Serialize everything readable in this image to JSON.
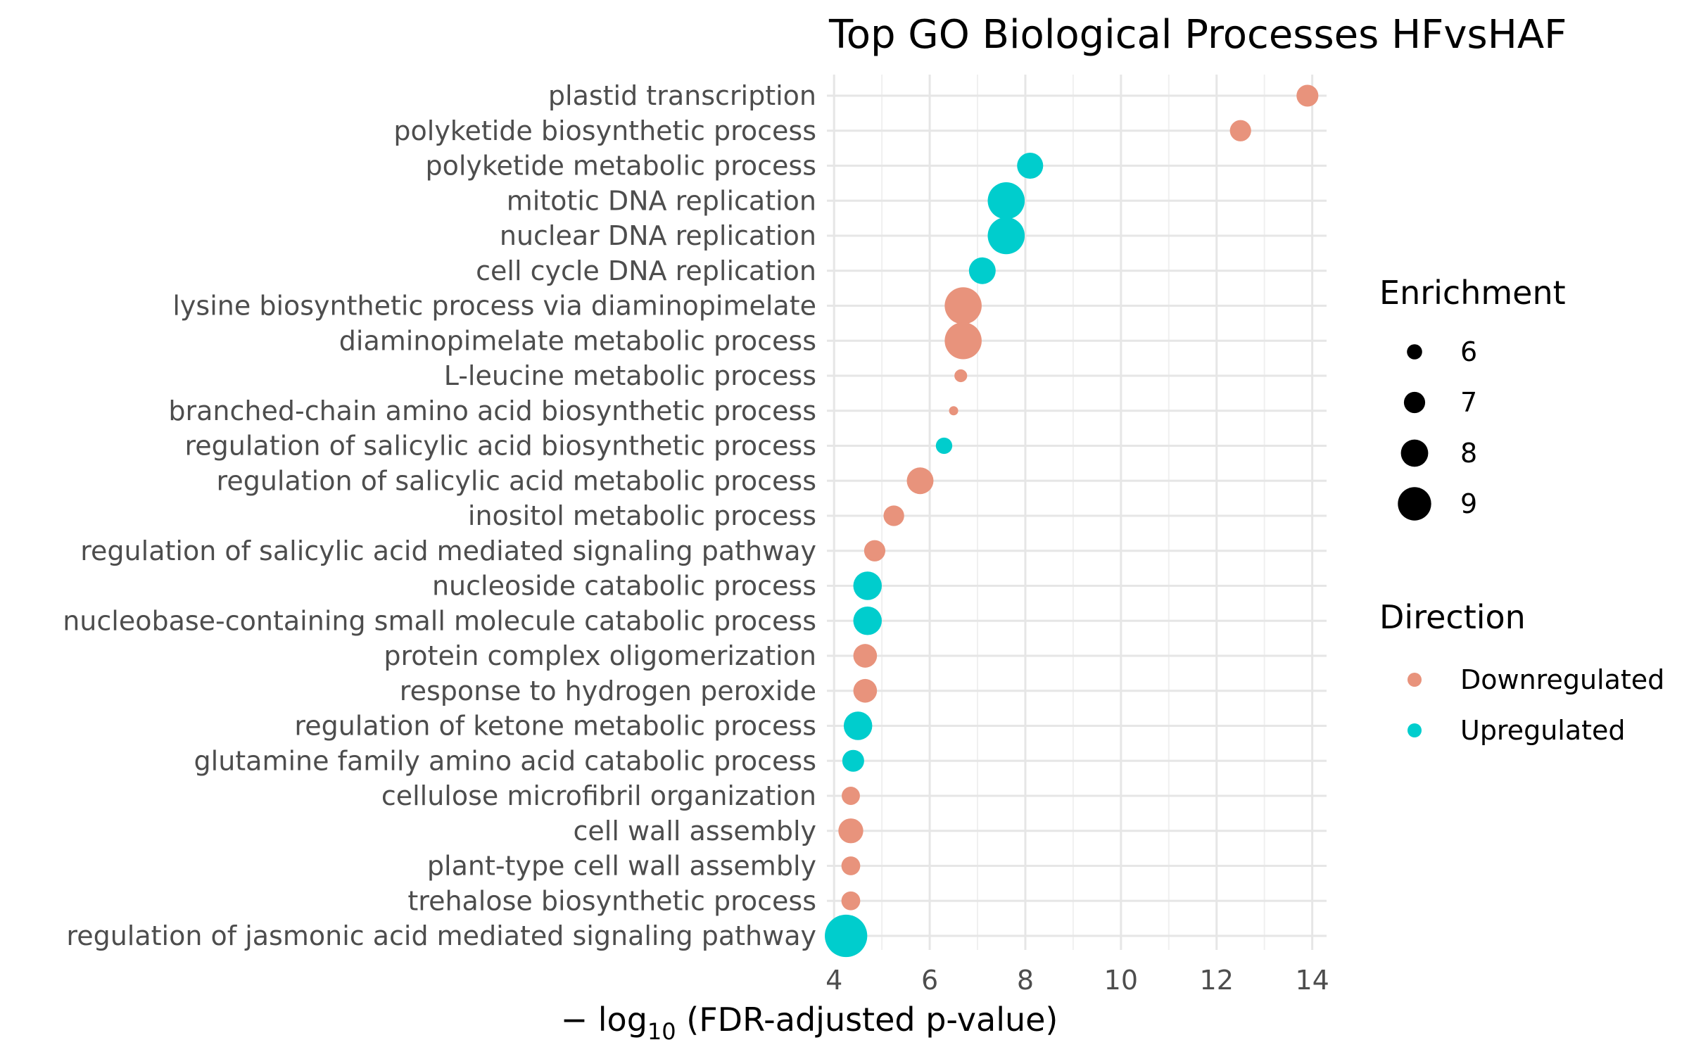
{
  "chart_data": {
    "type": "scatter",
    "title": "Top GO Biological Processes HFvsHAF",
    "xlabel": {
      "prefix": "− log",
      "subscript": "10",
      "suffix": " (FDR-adjusted p-value)"
    },
    "ylabel": "",
    "xlim": [
      3.85,
      14.3
    ],
    "xticks": [
      4,
      6,
      8,
      10,
      12,
      14
    ],
    "grid": true,
    "colors": {
      "Downregulated": "#E8937C",
      "Upregulated": "#00CDCD"
    },
    "categories": [
      "plastid transcription",
      "polyketide biosynthetic process",
      "polyketide metabolic process",
      "mitotic DNA replication",
      "nuclear DNA replication",
      "cell cycle DNA replication",
      "lysine biosynthetic process via diaminopimelate",
      "diaminopimelate metabolic process",
      "L-leucine metabolic process",
      "branched-chain amino acid biosynthetic process",
      "regulation of salicylic acid biosynthetic process",
      "regulation of salicylic acid metabolic process",
      "inositol metabolic process",
      "regulation of salicylic acid mediated signaling pathway",
      "nucleoside catabolic process",
      "nucleobase-containing small molecule catabolic process",
      "protein complex oligomerization",
      "response to hydrogen peroxide",
      "regulation of ketone metabolic process",
      "glutamine family amino acid catabolic process",
      "cellulose microfibril organization",
      "cell wall assembly",
      "plant-type cell wall assembly",
      "trehalose biosynthetic process",
      "regulation of jasmonic acid mediated signaling pathway"
    ],
    "points": [
      {
        "x": 13.9,
        "enrichment": 7.1,
        "direction": "Downregulated"
      },
      {
        "x": 12.5,
        "enrichment": 7.0,
        "direction": "Downregulated"
      },
      {
        "x": 8.1,
        "enrichment": 7.8,
        "direction": "Upregulated"
      },
      {
        "x": 7.6,
        "enrichment": 9.6,
        "direction": "Upregulated"
      },
      {
        "x": 7.6,
        "enrichment": 9.6,
        "direction": "Upregulated"
      },
      {
        "x": 7.1,
        "enrichment": 7.9,
        "direction": "Upregulated"
      },
      {
        "x": 6.7,
        "enrichment": 9.6,
        "direction": "Downregulated"
      },
      {
        "x": 6.7,
        "enrichment": 9.6,
        "direction": "Downregulated"
      },
      {
        "x": 6.65,
        "enrichment": 5.6,
        "direction": "Downregulated"
      },
      {
        "x": 6.5,
        "enrichment": 5.0,
        "direction": "Downregulated"
      },
      {
        "x": 6.3,
        "enrichment": 6.2,
        "direction": "Upregulated"
      },
      {
        "x": 5.8,
        "enrichment": 7.9,
        "direction": "Downregulated"
      },
      {
        "x": 5.25,
        "enrichment": 6.9,
        "direction": "Downregulated"
      },
      {
        "x": 4.85,
        "enrichment": 7.0,
        "direction": "Downregulated"
      },
      {
        "x": 4.7,
        "enrichment": 8.2,
        "direction": "Upregulated"
      },
      {
        "x": 4.7,
        "enrichment": 8.2,
        "direction": "Upregulated"
      },
      {
        "x": 4.65,
        "enrichment": 7.4,
        "direction": "Downregulated"
      },
      {
        "x": 4.65,
        "enrichment": 7.4,
        "direction": "Downregulated"
      },
      {
        "x": 4.5,
        "enrichment": 8.2,
        "direction": "Upregulated"
      },
      {
        "x": 4.4,
        "enrichment": 7.1,
        "direction": "Upregulated"
      },
      {
        "x": 4.35,
        "enrichment": 6.5,
        "direction": "Downregulated"
      },
      {
        "x": 4.35,
        "enrichment": 7.6,
        "direction": "Downregulated"
      },
      {
        "x": 4.35,
        "enrichment": 6.6,
        "direction": "Downregulated"
      },
      {
        "x": 4.35,
        "enrichment": 6.6,
        "direction": "Downregulated"
      },
      {
        "x": 4.25,
        "enrichment": 10.5,
        "direction": "Upregulated"
      }
    ],
    "legend": {
      "placement": "right",
      "size_title": "Enrichment",
      "size_values": [
        6,
        7,
        8,
        9
      ],
      "color_title": "Direction",
      "color_entries": [
        "Downregulated",
        "Upregulated"
      ]
    }
  }
}
